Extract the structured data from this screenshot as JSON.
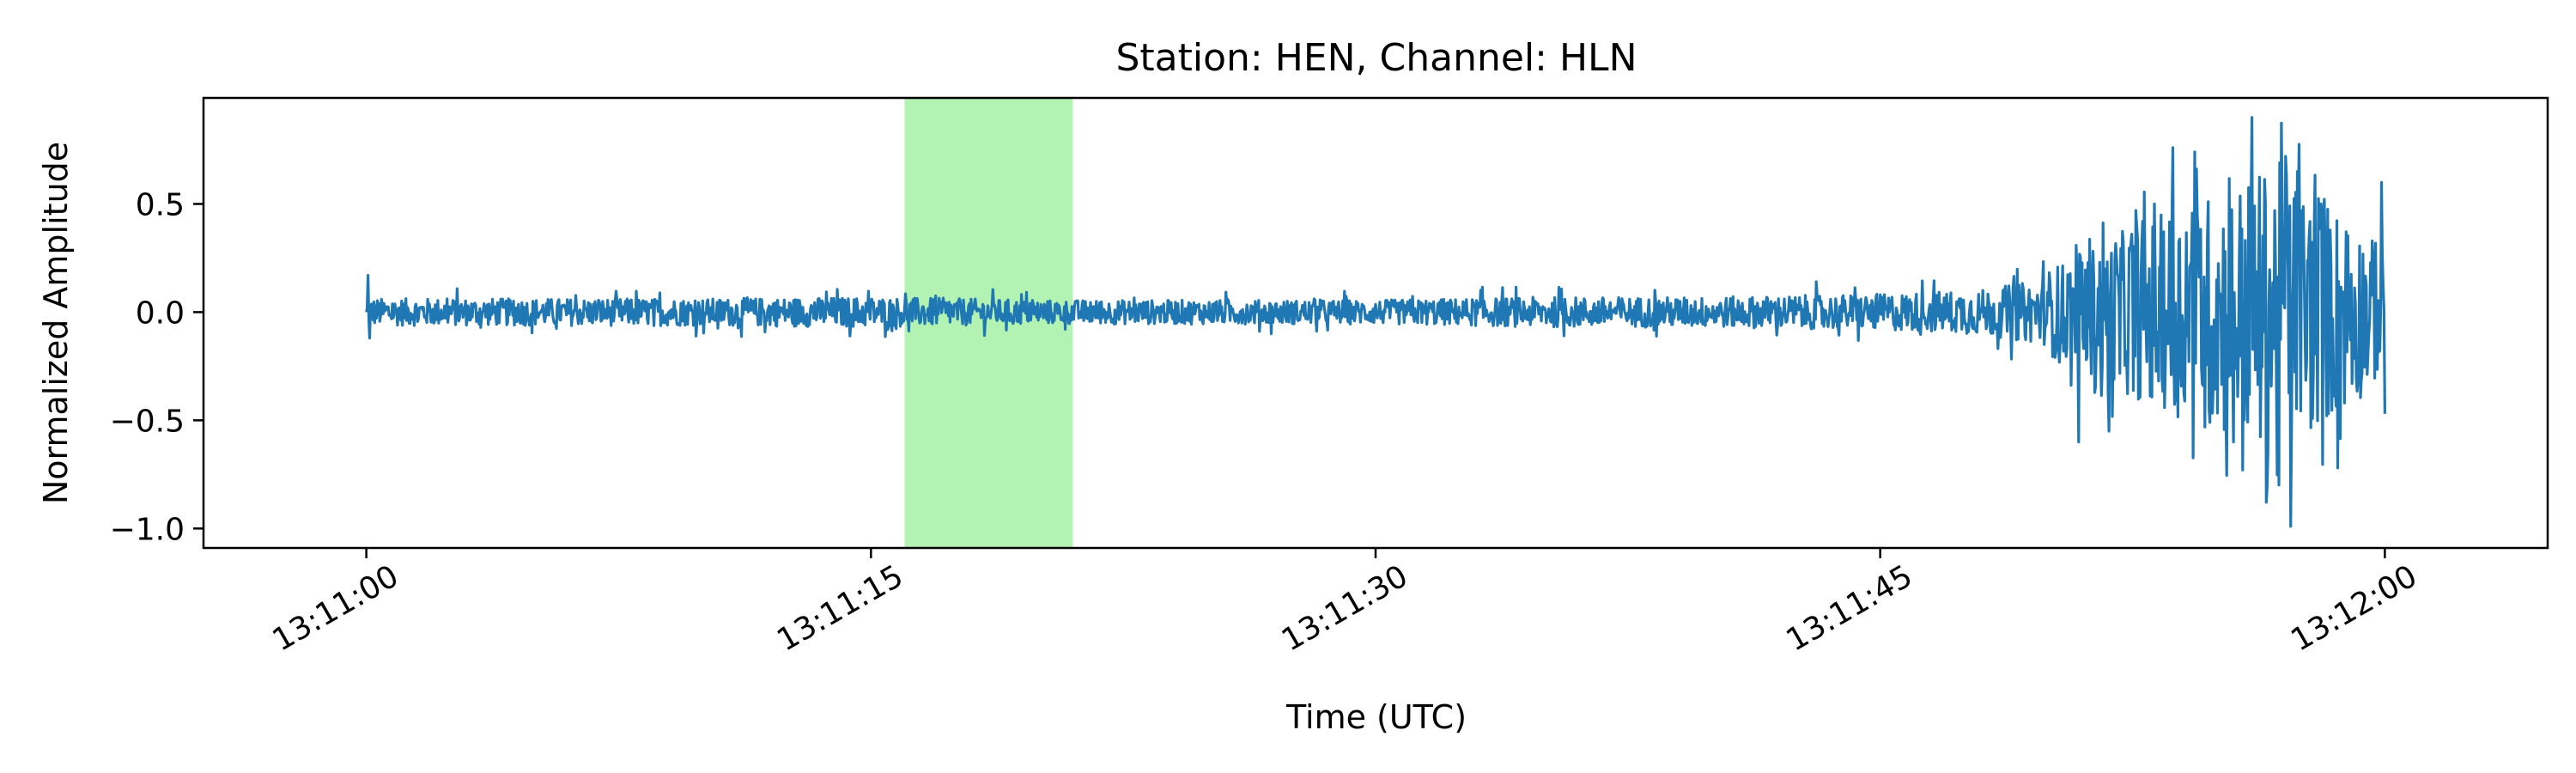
{
  "chart_data": {
    "type": "line",
    "title": "Station: HEN, Channel: HLN",
    "xlabel": "Time (UTC)",
    "ylabel": "Normalized Amplitude",
    "xlim_seconds": [
      -4.84,
      64.84
    ],
    "ylim": [
      -1.09,
      0.99
    ],
    "x_start": "13:11:00",
    "x_end": "13:12:00",
    "x_ticks": [
      {
        "value": 0,
        "label": "13:11:00"
      },
      {
        "value": 15,
        "label": "13:11:15"
      },
      {
        "value": 30,
        "label": "13:11:30"
      },
      {
        "value": 45,
        "label": "13:11:45"
      },
      {
        "value": 60,
        "label": "13:12:00"
      }
    ],
    "y_ticks": [
      {
        "value": 0.5,
        "label": "0.5"
      },
      {
        "value": 0.0,
        "label": "0.0"
      },
      {
        "value": -0.5,
        "label": "−0.5"
      },
      {
        "value": -1.0,
        "label": "−1.0"
      }
    ],
    "highlight": {
      "start": 16.0,
      "end": 21.0,
      "color": "#b2f2b2"
    },
    "series": [
      {
        "color": "#1f77b4",
        "envelope": [
          [
            0,
            0.09
          ],
          [
            10,
            0.09
          ],
          [
            15,
            0.1
          ],
          [
            20,
            0.08
          ],
          [
            30,
            0.08
          ],
          [
            35,
            0.1
          ],
          [
            40,
            0.1
          ],
          [
            45,
            0.12
          ],
          [
            48,
            0.15
          ],
          [
            50,
            0.22
          ],
          [
            52,
            0.4
          ],
          [
            54,
            0.55
          ],
          [
            56,
            0.7
          ],
          [
            57,
            0.78
          ],
          [
            58,
            0.6
          ],
          [
            59,
            0.5
          ],
          [
            60,
            0.3
          ]
        ],
        "peaks": [
          {
            "x": 53.15,
            "y": 0.5
          },
          {
            "x": 53.7,
            "y": 0.76
          },
          {
            "x": 54.35,
            "y": 0.74
          },
          {
            "x": 56.05,
            "y": 0.9
          },
          {
            "x": 55.5,
            "y": -0.6
          },
          {
            "x": 56.5,
            "y": -0.82
          },
          {
            "x": 57.2,
            "y": -0.99
          },
          {
            "x": 57.05,
            "y": 0.72
          },
          {
            "x": 57.4,
            "y": 0.65
          },
          {
            "x": 58.6,
            "y": -0.72
          },
          {
            "x": 59.9,
            "y": 0.6
          },
          {
            "x": 60.0,
            "y": -0.47
          },
          {
            "x": 50.9,
            "y": -0.6
          },
          {
            "x": 51.8,
            "y": -0.55
          },
          {
            "x": 58.1,
            "y": 0.5
          },
          {
            "x": 52.6,
            "y": 0.47
          }
        ]
      }
    ]
  }
}
